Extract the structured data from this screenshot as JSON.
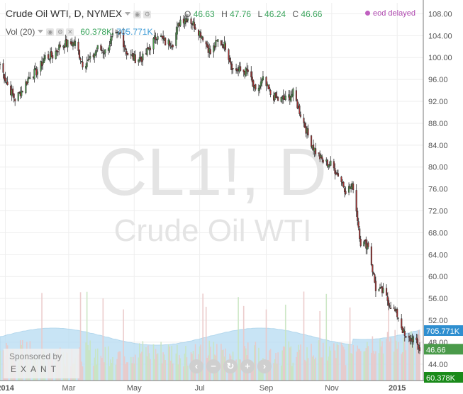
{
  "header": {
    "title": "Crude Oil WTI, D, NYMEX",
    "ohlc": {
      "o_label": "O",
      "o": "46.63",
      "h_label": "H",
      "h": "47.76",
      "l_label": "L",
      "l": "46.24",
      "c_label": "C",
      "c": "46.66"
    },
    "delay_label": "eod delayed",
    "volume": {
      "label": "Vol (20)",
      "value": "60.378K",
      "ma_value": "705.771K"
    }
  },
  "watermark": {
    "symbol": "CL1!, D",
    "name": "Crude Oil WTI"
  },
  "sponsor": {
    "label": "Sponsored by",
    "brand": "EXANT"
  },
  "zoom_buttons": [
    {
      "icon": "scroll-left-icon",
      "glyph": "‹"
    },
    {
      "icon": "zoom-out-icon",
      "glyph": "−"
    },
    {
      "icon": "reset-icon",
      "glyph": "↻"
    },
    {
      "icon": "zoom-in-icon",
      "glyph": "+"
    },
    {
      "icon": "scroll-right-icon",
      "glyph": "›"
    }
  ],
  "colors": {
    "up": "#50a050",
    "down": "#a83232",
    "volume": "#a9d3ea",
    "volume_ma": "#b6dcf2",
    "price_badge": "#4a9a4a",
    "vol_badge": "#2f8fd0",
    "vol_badge2": "#1a8a1a"
  },
  "chart_data": {
    "type": "candlestick",
    "ylim": [
      41,
      110
    ],
    "y_ticks": [
      "108.00",
      "104.00",
      "100.00",
      "96.00",
      "92.00",
      "88.00",
      "84.00",
      "80.00",
      "76.00",
      "72.00",
      "68.00",
      "64.00",
      "60.00",
      "56.00",
      "52.00",
      "48.00",
      "44.00"
    ],
    "x_ticks": [
      "2014",
      "Mar",
      "May",
      "Jul",
      "Sep",
      "Nov",
      "2015"
    ],
    "x_range": [
      "2013-12-27",
      "2015-01-22"
    ],
    "last_price": "46.66",
    "last_volume": "60.378K",
    "volume_ma": "705.771K",
    "close_path": [
      [
        "2013-12-27",
        98.8
      ],
      [
        "2014-01-03",
        95.0
      ],
      [
        "2014-01-10",
        92.4
      ],
      [
        "2014-01-17",
        94.2
      ],
      [
        "2014-01-24",
        96.8
      ],
      [
        "2014-01-31",
        97.5
      ],
      [
        "2014-02-07",
        100.1
      ],
      [
        "2014-02-14",
        100.3
      ],
      [
        "2014-02-21",
        102.2
      ],
      [
        "2014-02-28",
        102.6
      ],
      [
        "2014-03-07",
        102.6
      ],
      [
        "2014-03-14",
        98.9
      ],
      [
        "2014-03-21",
        99.5
      ],
      [
        "2014-03-28",
        101.7
      ],
      [
        "2014-04-04",
        101.1
      ],
      [
        "2014-04-11",
        103.7
      ],
      [
        "2014-04-18",
        104.3
      ],
      [
        "2014-04-25",
        100.6
      ],
      [
        "2014-05-02",
        99.8
      ],
      [
        "2014-05-09",
        99.9
      ],
      [
        "2014-05-16",
        102.0
      ],
      [
        "2014-05-23",
        104.4
      ],
      [
        "2014-05-30",
        102.7
      ],
      [
        "2014-06-06",
        102.7
      ],
      [
        "2014-06-13",
        106.9
      ],
      [
        "2014-06-20",
        107.3
      ],
      [
        "2014-06-27",
        105.7
      ],
      [
        "2014-07-04",
        103.8
      ],
      [
        "2014-07-11",
        100.8
      ],
      [
        "2014-07-18",
        103.1
      ],
      [
        "2014-07-25",
        102.1
      ],
      [
        "2014-08-01",
        97.9
      ],
      [
        "2014-08-08",
        97.6
      ],
      [
        "2014-08-15",
        97.4
      ],
      [
        "2014-08-22",
        93.6
      ],
      [
        "2014-08-29",
        95.9
      ],
      [
        "2014-09-05",
        93.3
      ],
      [
        "2014-09-12",
        92.3
      ],
      [
        "2014-09-19",
        92.4
      ],
      [
        "2014-09-26",
        93.5
      ],
      [
        "2014-10-03",
        89.7
      ],
      [
        "2014-10-10",
        85.8
      ],
      [
        "2014-10-17",
        82.8
      ],
      [
        "2014-10-24",
        81.0
      ],
      [
        "2014-10-31",
        80.5
      ],
      [
        "2014-11-07",
        78.7
      ],
      [
        "2014-11-14",
        75.8
      ],
      [
        "2014-11-21",
        76.5
      ],
      [
        "2014-11-28",
        66.2
      ],
      [
        "2014-12-05",
        65.8
      ],
      [
        "2014-12-12",
        57.8
      ],
      [
        "2014-12-19",
        57.1
      ],
      [
        "2014-12-26",
        54.7
      ],
      [
        "2015-01-02",
        52.7
      ],
      [
        "2015-01-09",
        48.4
      ],
      [
        "2015-01-16",
        48.7
      ],
      [
        "2015-01-22",
        46.7
      ]
    ]
  }
}
